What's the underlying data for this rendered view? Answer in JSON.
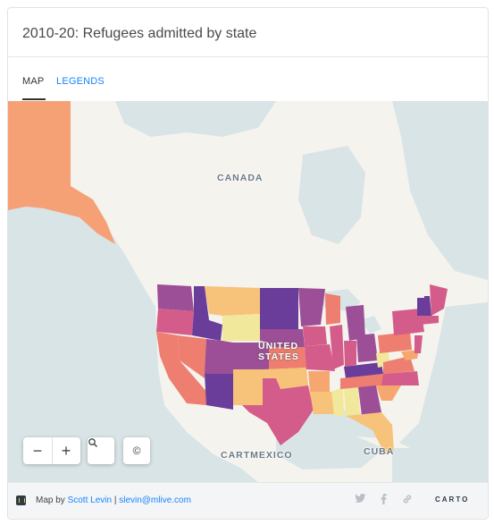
{
  "header": {
    "title": "2010-20: Refugees admitted by state"
  },
  "tabs": [
    {
      "label": "MAP",
      "active": true
    },
    {
      "label": "LEGENDS",
      "active": false
    }
  ],
  "map": {
    "labels": {
      "canada": "CANADA",
      "us_line1": "UNITED",
      "us_line2": "STATES",
      "mexico": "MEXICO",
      "cuba": "CUBA",
      "carto_overlay": "CART"
    },
    "colors": {
      "water": "#d9e4e6",
      "land": "#f5f3ee",
      "very_high": "#6a3d9a",
      "high": "#9c4f96",
      "mid_high": "#d45c8a",
      "mid": "#ee7e6f",
      "low": "#f6a76f",
      "lower": "#f7c27a",
      "lowest": "#f1e89b"
    }
  },
  "controls": {
    "zoom_out": "−",
    "zoom_in": "+",
    "search_icon": "search-icon",
    "attribution_icon": "©"
  },
  "footer": {
    "prefix": "Map by ",
    "author": "Scott Levin",
    "separator": " | ",
    "email": "slevin@mlive.com",
    "brand": "CARTO"
  }
}
